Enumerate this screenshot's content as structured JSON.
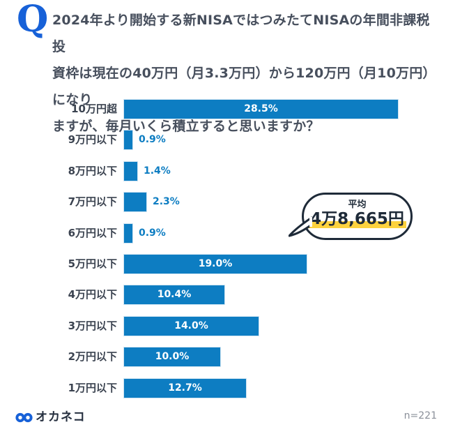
{
  "question": {
    "icon_label": "Q",
    "lines": [
      "2024年より開始する新NISAではつみたてNISAの年間非課税投",
      "資枠は現在の40万円（月3.3万円）から120万円（月10万円）になり",
      "ますが、毎月いくら積立すると思いますか？"
    ]
  },
  "chart_data": {
    "type": "bar",
    "orientation": "horizontal",
    "title": "",
    "xlabel": "",
    "ylabel": "",
    "unit": "%",
    "xlim": [
      0,
      30
    ],
    "grid": false,
    "legend": false,
    "categories": [
      "10万円超",
      "9万円以下",
      "8万円以下",
      "7万円以下",
      "6万円以下",
      "5万円以下",
      "4万円以下",
      "3万円以下",
      "2万円以下",
      "1万円以下"
    ],
    "values": [
      28.5,
      0.9,
      1.4,
      2.3,
      0.9,
      19.0,
      10.4,
      14.0,
      10.0,
      12.7
    ],
    "value_labels": [
      "28.5%",
      "0.9%",
      "1.4%",
      "2.3%",
      "0.9%",
      "19.0%",
      "10.4%",
      "14.0%",
      "10.0%",
      "12.7%"
    ],
    "bar_color": "#0d7dc2"
  },
  "annotation_bubble": {
    "title": "平均",
    "value": "4万8,665円"
  },
  "footer": {
    "brand": "オカネコ",
    "sample_size": "n=221"
  },
  "colors": {
    "bar_blue": "#0d7dc2",
    "accent_blue": "#1761d8",
    "title_text": "#474f5d",
    "bubble_outline": "#1e2a38",
    "highlight_yellow": "#fdd23e",
    "muted_gray": "#8a8f99"
  }
}
